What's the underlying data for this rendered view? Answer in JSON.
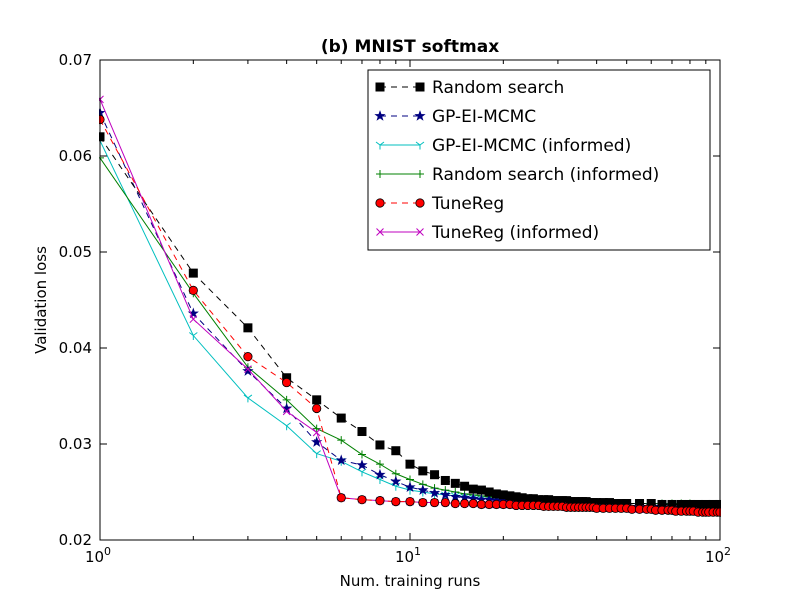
{
  "chart_data": {
    "type": "line",
    "title": "(b) MNIST softmax",
    "xlabel": "Num. training runs",
    "ylabel": "Validation loss",
    "xscale": "log",
    "xlim": [
      1,
      100
    ],
    "ylim": [
      0.02,
      0.07
    ],
    "x_ticks": [
      1,
      10,
      100
    ],
    "x_tick_labels": [
      {
        "base": "10",
        "exp": "0"
      },
      {
        "base": "10",
        "exp": "1"
      },
      {
        "base": "10",
        "exp": "2"
      }
    ],
    "y_ticks": [
      0.02,
      0.03,
      0.04,
      0.05,
      0.06,
      0.07
    ],
    "y_tick_labels": [
      "0.02",
      "0.03",
      "0.04",
      "0.05",
      "0.06",
      "0.07"
    ],
    "legend_position": "top-right",
    "series": [
      {
        "name": "Random search",
        "color": "#000000",
        "dash": "6,5",
        "marker": "square",
        "marker_fill": "#000000",
        "marker_stroke": "#000000",
        "marker_every": 1,
        "x": [
          1,
          2,
          3,
          4,
          5,
          6,
          7,
          8,
          9,
          10,
          11,
          12,
          13,
          14,
          15,
          16,
          17,
          18,
          19,
          20,
          21,
          22,
          23,
          24,
          25,
          26,
          27,
          28,
          29,
          30,
          31,
          32,
          33,
          34,
          35,
          36,
          37,
          38,
          39,
          40,
          42,
          44,
          46,
          48,
          50,
          55,
          60,
          65,
          70,
          75,
          80,
          85,
          90,
          95,
          100
        ],
        "y": [
          0.062,
          0.0478,
          0.0421,
          0.0369,
          0.0346,
          0.0327,
          0.0313,
          0.0299,
          0.0293,
          0.0279,
          0.0272,
          0.0268,
          0.0262,
          0.0259,
          0.0256,
          0.0253,
          0.0252,
          0.025,
          0.0248,
          0.0247,
          0.0246,
          0.0245,
          0.0244,
          0.0243,
          0.0243,
          0.0242,
          0.0242,
          0.0242,
          0.0241,
          0.0241,
          0.0241,
          0.0241,
          0.024,
          0.024,
          0.024,
          0.024,
          0.024,
          0.0239,
          0.0239,
          0.0239,
          0.0239,
          0.0239,
          0.0238,
          0.0238,
          0.0238,
          0.0238,
          0.0238,
          0.0237,
          0.0237,
          0.0237,
          0.0237,
          0.0237,
          0.0237,
          0.0237,
          0.0237
        ]
      },
      {
        "name": "GP-EI-MCMC",
        "color": "#000080",
        "dash": "6,5",
        "marker": "star",
        "marker_fill": "#000080",
        "marker_stroke": "#000080",
        "marker_every": 1,
        "x": [
          1,
          2,
          3,
          4,
          5,
          6,
          7,
          8,
          9,
          10,
          11,
          12,
          13,
          14,
          15,
          16,
          17,
          18,
          19,
          20,
          21,
          22,
          23,
          24,
          25,
          26,
          27,
          28,
          29,
          30,
          31,
          32,
          33,
          34,
          35,
          36,
          37,
          38,
          39,
          40,
          42,
          44,
          46,
          48,
          50,
          55,
          60,
          65,
          70,
          75,
          80,
          85,
          90,
          95,
          100
        ],
        "y": [
          0.0645,
          0.0436,
          0.0376,
          0.0337,
          0.0302,
          0.0283,
          0.0278,
          0.0268,
          0.0261,
          0.0255,
          0.0252,
          0.0249,
          0.0247,
          0.0245,
          0.0244,
          0.0243,
          0.0242,
          0.0242,
          0.0241,
          0.0241,
          0.024,
          0.024,
          0.024,
          0.0239,
          0.0239,
          0.0239,
          0.0239,
          0.0238,
          0.0238,
          0.0238,
          0.0238,
          0.0238,
          0.0237,
          0.0237,
          0.0237,
          0.0237,
          0.0237,
          0.0237,
          0.0237,
          0.0236,
          0.0236,
          0.0236,
          0.0236,
          0.0236,
          0.0236,
          0.0236,
          0.0236,
          0.0236,
          0.0235,
          0.0235,
          0.0235,
          0.0235,
          0.0235,
          0.0235,
          0.0235
        ]
      },
      {
        "name": "GP-EI-MCMC (informed)",
        "color": "#00bfbf",
        "dash": "",
        "marker": "tri",
        "marker_fill": "none",
        "marker_stroke": "#00bfbf",
        "marker_every": 1,
        "x": [
          1,
          2,
          3,
          4,
          5,
          6,
          7,
          8,
          9,
          10,
          11,
          12,
          13,
          14,
          15,
          16,
          17,
          18,
          19,
          20,
          21,
          22,
          23,
          24,
          25,
          26,
          27,
          28,
          29,
          30,
          31,
          32,
          33,
          34,
          35,
          36,
          37,
          38,
          39,
          40,
          42,
          44,
          46,
          48,
          50,
          55,
          60,
          65,
          70,
          75,
          80,
          85,
          90,
          95,
          100
        ],
        "y": [
          0.0616,
          0.0413,
          0.0348,
          0.0319,
          0.029,
          0.0282,
          0.0271,
          0.0263,
          0.0256,
          0.0252,
          0.025,
          0.0248,
          0.0247,
          0.0246,
          0.0245,
          0.0244,
          0.0243,
          0.0243,
          0.0242,
          0.0242,
          0.0241,
          0.0241,
          0.0241,
          0.0241,
          0.024,
          0.024,
          0.024,
          0.024,
          0.024,
          0.024,
          0.0239,
          0.0239,
          0.0239,
          0.0239,
          0.0239,
          0.0239,
          0.0239,
          0.0239,
          0.0238,
          0.0238,
          0.0238,
          0.0238,
          0.0238,
          0.0238,
          0.0238,
          0.0238,
          0.0238,
          0.0238,
          0.0238,
          0.0238,
          0.0238,
          0.0238,
          0.0238,
          0.0238,
          0.0238
        ]
      },
      {
        "name": "Random search (informed)",
        "color": "#008000",
        "dash": "",
        "marker": "plus",
        "marker_fill": "none",
        "marker_stroke": "#008000",
        "marker_every": 1,
        "x": [
          1,
          2,
          3,
          4,
          5,
          6,
          7,
          8,
          9,
          10,
          11,
          12,
          13,
          14,
          15,
          16,
          17,
          18,
          19,
          20,
          21,
          22,
          23,
          24,
          25,
          26,
          27,
          28,
          29,
          30,
          31,
          32,
          33,
          34,
          35,
          36,
          37,
          38,
          39,
          40,
          42,
          44,
          46,
          48,
          50,
          55,
          60,
          65,
          70,
          75,
          80,
          85,
          90,
          95,
          100
        ],
        "y": [
          0.0598,
          0.0457,
          0.038,
          0.0346,
          0.0316,
          0.0304,
          0.0289,
          0.0279,
          0.0269,
          0.0263,
          0.0258,
          0.0254,
          0.0252,
          0.025,
          0.0248,
          0.0247,
          0.0246,
          0.0245,
          0.0244,
          0.0244,
          0.0243,
          0.0243,
          0.0242,
          0.0242,
          0.0242,
          0.0241,
          0.0241,
          0.0241,
          0.0241,
          0.024,
          0.024,
          0.024,
          0.024,
          0.024,
          0.024,
          0.0239,
          0.0239,
          0.0239,
          0.0239,
          0.0239,
          0.0239,
          0.0239,
          0.0238,
          0.0238,
          0.0238,
          0.0238,
          0.0238,
          0.0238,
          0.0238,
          0.0238,
          0.0238,
          0.0237,
          0.0237,
          0.0237,
          0.0237
        ]
      },
      {
        "name": "TuneReg",
        "color": "#ff0000",
        "dash": "6,5",
        "marker": "circle",
        "marker_fill": "#ff0000",
        "marker_stroke": "#000000",
        "marker_every": 1,
        "x": [
          1,
          2,
          3,
          4,
          5,
          6,
          7,
          8,
          9,
          10,
          11,
          12,
          13,
          14,
          15,
          16,
          17,
          18,
          19,
          20,
          21,
          22,
          23,
          24,
          25,
          26,
          27,
          28,
          29,
          30,
          31,
          32,
          33,
          34,
          35,
          36,
          37,
          38,
          39,
          40,
          42,
          44,
          46,
          48,
          50,
          52,
          55,
          58,
          60,
          62,
          65,
          68,
          70,
          72,
          75,
          78,
          80,
          82,
          85,
          88,
          90,
          92,
          95,
          98,
          100
        ],
        "y": [
          0.0638,
          0.046,
          0.0391,
          0.0364,
          0.0337,
          0.0244,
          0.0242,
          0.0241,
          0.024,
          0.024,
          0.0239,
          0.0239,
          0.0239,
          0.0238,
          0.0238,
          0.0238,
          0.0237,
          0.0237,
          0.0237,
          0.0237,
          0.0237,
          0.0236,
          0.0236,
          0.0236,
          0.0236,
          0.0236,
          0.0235,
          0.0235,
          0.0235,
          0.0235,
          0.0235,
          0.0234,
          0.0234,
          0.0234,
          0.0234,
          0.0234,
          0.0234,
          0.0234,
          0.0234,
          0.0233,
          0.0233,
          0.0233,
          0.0233,
          0.0233,
          0.0233,
          0.0232,
          0.0232,
          0.0232,
          0.0232,
          0.0231,
          0.0231,
          0.0231,
          0.0231,
          0.023,
          0.023,
          0.023,
          0.023,
          0.023,
          0.0229,
          0.0229,
          0.0229,
          0.0229,
          0.0229,
          0.0229,
          0.0229
        ]
      },
      {
        "name": "TuneReg (informed)",
        "color": "#bf00bf",
        "dash": "",
        "marker": "x",
        "marker_fill": "none",
        "marker_stroke": "#bf00bf",
        "marker_every": 1,
        "x": [
          1,
          2,
          3,
          4,
          5,
          6,
          7,
          8,
          9,
          10,
          11,
          12,
          13,
          14,
          15,
          16,
          17,
          18,
          19,
          20,
          21,
          22,
          23,
          24,
          25,
          26,
          27,
          28,
          29,
          30,
          31,
          32,
          33,
          34,
          35,
          36,
          37,
          38,
          39,
          40,
          42,
          44,
          46,
          48,
          50,
          52,
          55,
          58,
          60,
          62,
          65,
          68,
          70,
          72,
          75,
          78,
          80,
          82,
          85,
          88,
          90,
          92,
          95,
          98,
          100
        ],
        "y": [
          0.0659,
          0.043,
          0.0378,
          0.0334,
          0.0312,
          0.0244,
          0.0242,
          0.0241,
          0.024,
          0.024,
          0.0239,
          0.0239,
          0.0239,
          0.0238,
          0.0238,
          0.0238,
          0.0237,
          0.0237,
          0.0237,
          0.0237,
          0.0237,
          0.0236,
          0.0236,
          0.0236,
          0.0236,
          0.0236,
          0.0235,
          0.0235,
          0.0235,
          0.0235,
          0.0235,
          0.0234,
          0.0234,
          0.0234,
          0.0234,
          0.0234,
          0.0234,
          0.0234,
          0.0234,
          0.0233,
          0.0233,
          0.0233,
          0.0233,
          0.0233,
          0.0233,
          0.0232,
          0.0232,
          0.0232,
          0.0232,
          0.0231,
          0.0231,
          0.0231,
          0.0231,
          0.023,
          0.023,
          0.023,
          0.023,
          0.023,
          0.0229,
          0.0229,
          0.0229,
          0.0229,
          0.0229,
          0.0229,
          0.0229
        ]
      }
    ]
  }
}
